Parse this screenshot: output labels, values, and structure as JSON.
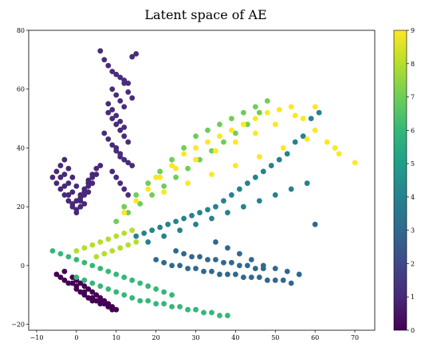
{
  "chart_data": {
    "type": "scatter",
    "title": "Latent space of AE",
    "xlabel": "",
    "ylabel": "",
    "xlim": [
      -12,
      75
    ],
    "ylim": [
      -22,
      80
    ],
    "x_ticks": [
      -10,
      0,
      10,
      20,
      30,
      40,
      50,
      60,
      70
    ],
    "y_ticks": [
      -20,
      0,
      20,
      40,
      60,
      80
    ],
    "grid": false,
    "colorbar": {
      "colormap": "viridis",
      "range": [
        0,
        9
      ],
      "ticks": [
        0,
        1,
        2,
        3,
        4,
        5,
        6,
        7,
        8,
        9
      ]
    },
    "series": [
      {
        "label_value": 0,
        "color": "#440154",
        "values_x": [
          -5,
          -3,
          -1,
          0,
          1,
          2,
          3,
          4,
          5,
          6,
          7,
          8,
          9,
          -4,
          -2,
          0,
          2,
          4,
          6,
          8,
          -3,
          -1,
          1,
          3,
          5,
          7,
          9,
          0,
          2,
          4,
          6,
          8,
          10
        ],
        "values_y": [
          -3,
          -5,
          -6,
          -8,
          -9,
          -10,
          -11,
          -12,
          -12,
          -13,
          -13,
          -14,
          -15,
          -4,
          -6,
          -7,
          -9,
          -11,
          -12,
          -14,
          -2,
          -4,
          -6,
          -8,
          -10,
          -12,
          -14,
          -5,
          -7,
          -9,
          -11,
          -13,
          -15
        ]
      },
      {
        "label_value": 1,
        "color": "#472d7b",
        "values_x": [
          6,
          7,
          8,
          9,
          10,
          11,
          12,
          13,
          14,
          15,
          9,
          10,
          11,
          12,
          8,
          9,
          10,
          11,
          12,
          13,
          10,
          11,
          12,
          13,
          14,
          9,
          10,
          11,
          12,
          13,
          8,
          9,
          10,
          11,
          12,
          7,
          8,
          9,
          10,
          11,
          12,
          13,
          14
        ],
        "values_y": [
          73,
          70,
          68,
          66,
          65,
          64,
          63,
          62,
          71,
          72,
          60,
          58,
          56,
          54,
          52,
          50,
          48,
          46,
          44,
          42,
          40,
          38,
          36,
          35,
          34,
          32,
          30,
          28,
          26,
          24,
          55,
          53,
          51,
          49,
          47,
          45,
          43,
          41,
          39,
          37,
          62,
          59,
          57
        ]
      },
      {
        "label_value": 1,
        "color": "#482878",
        "values_x": [
          -6,
          -5,
          -4,
          -3,
          -2,
          -1,
          0,
          1,
          2,
          3,
          -5,
          -4,
          -3,
          -2,
          -1,
          0,
          1,
          2,
          3,
          4,
          -4,
          -3,
          -2,
          -1,
          0,
          1,
          2,
          3,
          4,
          5,
          -3,
          -2,
          -1,
          0,
          1,
          2,
          3,
          4,
          5,
          6
        ],
        "values_y": [
          30,
          28,
          26,
          24,
          22,
          20,
          18,
          22,
          25,
          28,
          32,
          30,
          27,
          24,
          21,
          19,
          23,
          26,
          29,
          31,
          34,
          31,
          28,
          25,
          22,
          20,
          24,
          27,
          30,
          33,
          36,
          33,
          30,
          27,
          24,
          21,
          25,
          28,
          31,
          34
        ]
      },
      {
        "label_value": 3,
        "color": "#31688e",
        "values_x": [
          20,
          22,
          24,
          26,
          28,
          30,
          32,
          34,
          36,
          38,
          40,
          42,
          44,
          46,
          48,
          50,
          52,
          54,
          25,
          27,
          29,
          31,
          33,
          35,
          37,
          39,
          41,
          43,
          45,
          47,
          35,
          38,
          41,
          44,
          47,
          50,
          53,
          56,
          60
        ],
        "values_y": [
          2,
          1,
          0,
          0,
          -1,
          -1,
          -2,
          -2,
          -3,
          -3,
          -3,
          -4,
          -4,
          -4,
          -5,
          -5,
          -5,
          -6,
          5,
          4,
          3,
          3,
          2,
          2,
          1,
          1,
          0,
          0,
          -1,
          -1,
          8,
          6,
          4,
          2,
          0,
          -1,
          -2,
          -3,
          14
        ]
      },
      {
        "label_value": 4,
        "color": "#26828e",
        "values_x": [
          15,
          17,
          19,
          21,
          23,
          25,
          27,
          29,
          31,
          33,
          35,
          37,
          39,
          41,
          43,
          45,
          47,
          49,
          51,
          53,
          55,
          57,
          59,
          61,
          18,
          22,
          26,
          30,
          34,
          38,
          42,
          46,
          50,
          54,
          58
        ],
        "values_y": [
          10,
          11,
          12,
          13,
          14,
          15,
          16,
          17,
          18,
          19,
          20,
          22,
          24,
          26,
          28,
          30,
          32,
          34,
          36,
          38,
          42,
          44,
          50,
          52,
          8,
          10,
          12,
          14,
          16,
          18,
          20,
          22,
          24,
          26,
          28
        ]
      },
      {
        "label_value": 6,
        "color": "#35b779",
        "values_x": [
          0,
          2,
          4,
          6,
          8,
          10,
          12,
          14,
          16,
          18,
          20,
          22,
          24,
          26,
          28,
          30,
          32,
          34,
          36,
          38,
          -6,
          -4,
          -2,
          0,
          2,
          4,
          6,
          8,
          10,
          12,
          14,
          16,
          18,
          20,
          22,
          24
        ],
        "values_y": [
          -4,
          -5,
          -6,
          -7,
          -8,
          -9,
          -10,
          -11,
          -12,
          -12,
          -13,
          -13,
          -14,
          -14,
          -15,
          -15,
          -16,
          -16,
          -17,
          -17,
          5,
          4,
          3,
          2,
          1,
          0,
          -1,
          -2,
          -3,
          -4,
          -5,
          -6,
          -7,
          -8,
          -9,
          -10
        ]
      },
      {
        "label_value": 7,
        "color": "#6ece58",
        "values_x": [
          10,
          13,
          16,
          19,
          22,
          25,
          28,
          31,
          34,
          37,
          40,
          43,
          46,
          12,
          15,
          18,
          21,
          24,
          27,
          30,
          33,
          36,
          39,
          42,
          45,
          48
        ],
        "values_y": [
          15,
          18,
          21,
          24,
          27,
          30,
          33,
          36,
          39,
          42,
          45,
          48,
          52,
          20,
          24,
          28,
          32,
          36,
          40,
          44,
          46,
          48,
          50,
          52,
          54,
          56
        ]
      },
      {
        "label_value": 8,
        "color": "#b5de2b",
        "values_x": [
          0,
          2,
          4,
          6,
          8,
          10,
          12,
          14,
          5,
          7,
          9,
          11,
          13,
          15
        ],
        "values_y": [
          5,
          6,
          7,
          8,
          9,
          10,
          11,
          12,
          3,
          4,
          5,
          6,
          7,
          8
        ]
      },
      {
        "label_value": 9,
        "color": "#fde725",
        "values_x": [
          12,
          15,
          18,
          21,
          24,
          27,
          30,
          33,
          36,
          39,
          42,
          45,
          48,
          51,
          54,
          57,
          60,
          63,
          66,
          70,
          20,
          25,
          30,
          35,
          40,
          45,
          50,
          55,
          60,
          65,
          22,
          28,
          34,
          40,
          46,
          52,
          58
        ],
        "values_y": [
          18,
          22,
          26,
          30,
          34,
          38,
          40,
          42,
          44,
          46,
          48,
          50,
          52,
          53,
          54,
          50,
          46,
          42,
          38,
          35,
          30,
          33,
          36,
          39,
          42,
          45,
          48,
          51,
          54,
          40,
          25,
          28,
          31,
          34,
          37,
          40,
          43
        ]
      }
    ]
  }
}
